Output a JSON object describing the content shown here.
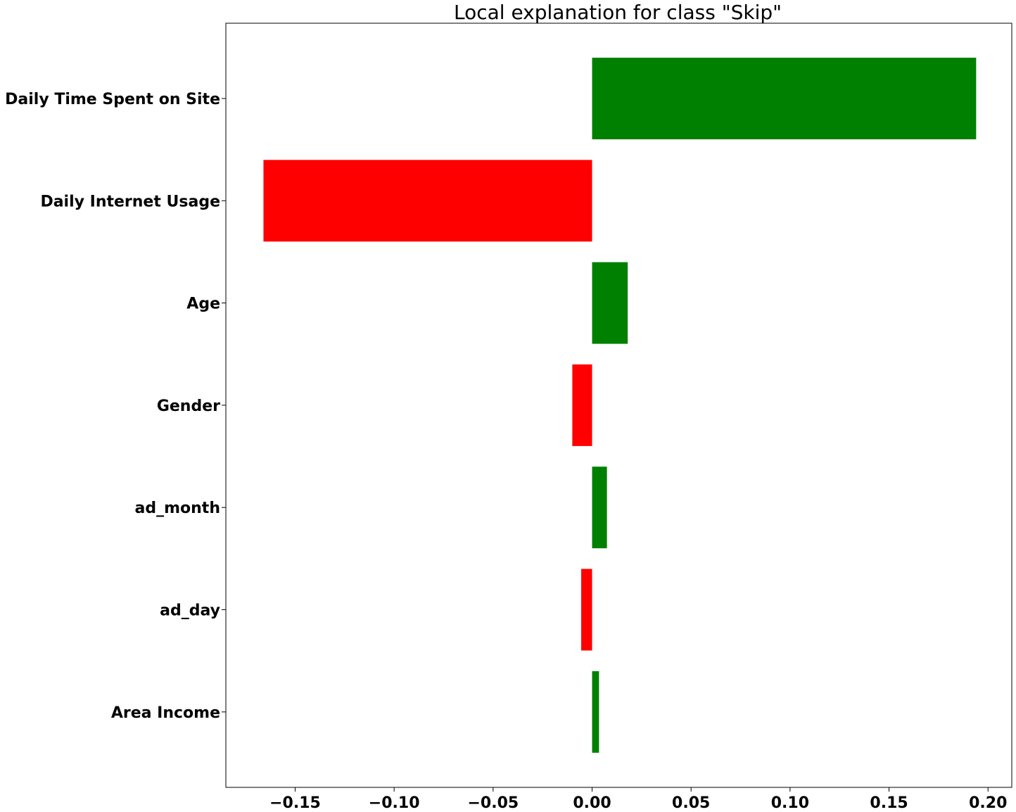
{
  "chart_data": {
    "type": "bar",
    "orientation": "horizontal",
    "title": "Local explanation for class \"Skip\"",
    "xlabel": "",
    "ylabel": "",
    "categories": [
      "Daily Time Spent on Site",
      "Daily Internet Usage",
      "Age",
      "Gender",
      "ad_month",
      "ad_day",
      "Area Income"
    ],
    "values": [
      0.194,
      -0.166,
      0.018,
      -0.01,
      0.0075,
      -0.0055,
      0.0035
    ],
    "positive_color": "#008000",
    "negative_color": "#ff0000",
    "xlim": [
      -0.185,
      0.212
    ],
    "xticks": [
      -0.15,
      -0.1,
      -0.05,
      0.0,
      0.05,
      0.1,
      0.15,
      0.2
    ],
    "xtick_labels": [
      "−0.15",
      "−0.10",
      "−0.05",
      "0.00",
      "0.05",
      "0.10",
      "0.15",
      "0.20"
    ],
    "grid": false,
    "legend": "none"
  }
}
